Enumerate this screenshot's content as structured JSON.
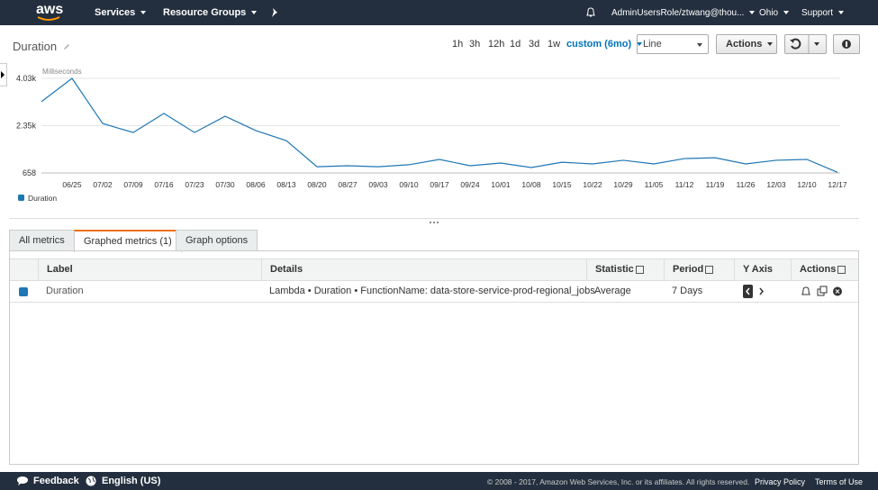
{
  "nav": {
    "logo": "aws",
    "services": "Services",
    "resource_groups": "Resource Groups",
    "user": "AdminUsersRole/ztwang@thou...",
    "region": "Ohio",
    "support": "Support"
  },
  "toolbar": {
    "ranges": [
      "1h",
      "3h",
      "12h",
      "1d",
      "3d",
      "1w"
    ],
    "custom": "custom (6mo)",
    "view": "Line",
    "actions": "Actions"
  },
  "chart_data": {
    "type": "line",
    "title": "Duration",
    "y_label": "Milliseconds",
    "categories": [
      null,
      "06/25",
      "07/02",
      "07/09",
      "07/16",
      "07/23",
      "07/30",
      "08/06",
      "08/13",
      "08/20",
      "08/27",
      "09/03",
      "09/10",
      "09/17",
      "09/24",
      "10/01",
      "10/08",
      "10/15",
      "10/22",
      "10/29",
      "11/05",
      "11/12",
      "11/19",
      "11/26",
      "12/03",
      "12/10",
      "12/17"
    ],
    "series": [
      {
        "name": "Duration",
        "color": "#1f77b4",
        "values": [
          3200,
          4030,
          2420,
          2100,
          2780,
          2100,
          2680,
          2170,
          1810,
          880,
          915,
          880,
          950,
          1140,
          915,
          1010,
          850,
          1040,
          980,
          1110,
          980,
          1170,
          1200,
          980,
          1110,
          1140,
          680
        ]
      }
    ],
    "ylim": [
      658,
      4030
    ],
    "yticks": [
      658,
      {
        "value": 2350,
        "label": "2.35k"
      },
      {
        "value": 4030,
        "label": "4.03k"
      }
    ],
    "grid": true
  },
  "tabs": [
    "All metrics",
    "Graphed metrics (1)",
    "Graph options"
  ],
  "table": {
    "headers": [
      "Label",
      "Details",
      "Statistic",
      "Period",
      "Y Axis",
      "Actions"
    ],
    "rows": [
      [
        "Duration",
        "Lambda • Duration • FunctionName: data-store-service-prod-regional_jobs",
        "Average",
        "7 Days"
      ]
    ]
  },
  "footer": {
    "feedback": "Feedback",
    "language": "English (US)",
    "copyright": "© 2008 - 2017, Amazon Web Services, Inc. or its affiliates. All rights reserved.",
    "privacy": "Privacy Policy",
    "terms": "Terms of Use"
  }
}
